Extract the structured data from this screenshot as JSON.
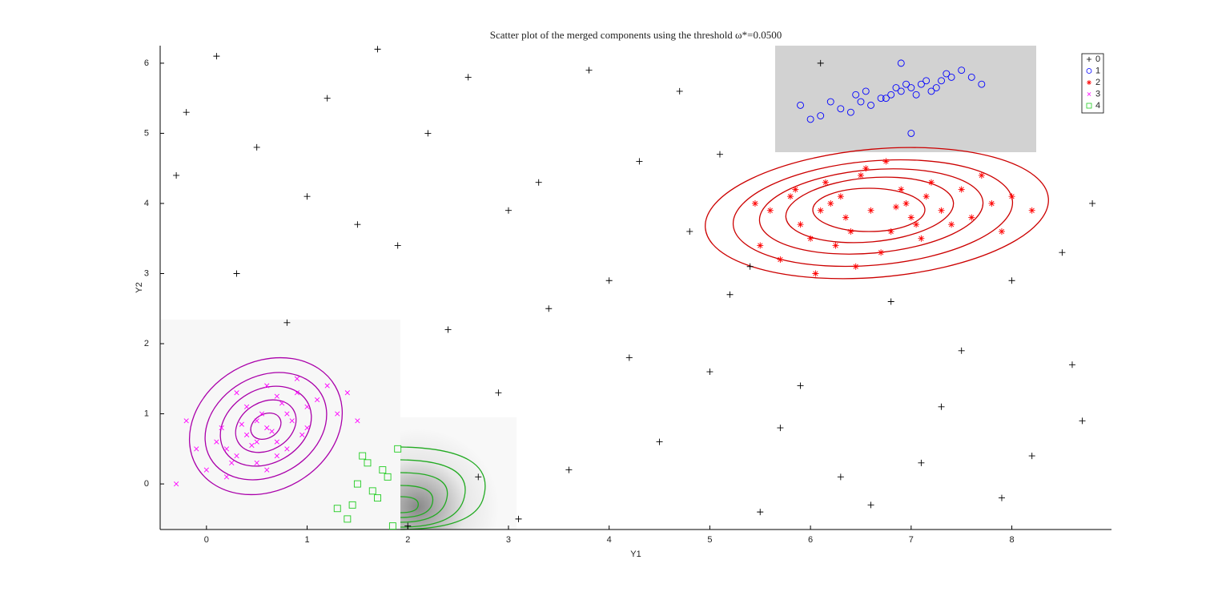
{
  "chart_data": {
    "type": "scatter",
    "title": "Scatter plot of the merged components using the threshold ω*=0.0500",
    "x_label": "Y1",
    "y_label": "Y2",
    "xlim": [
      -0.46,
      8.99
    ],
    "ylim": [
      -0.65,
      6.25
    ],
    "xticks": [
      0,
      1,
      2,
      3,
      4,
      5,
      6,
      7,
      8
    ],
    "yticks": [
      0,
      1,
      2,
      3,
      4,
      5,
      6
    ],
    "legend": "upper right",
    "series": [
      {
        "name": "0",
        "color": "#000000",
        "marker": "plus",
        "x": [
          0.1,
          0.5,
          1.2,
          1.9,
          2.6,
          3.3,
          4.0,
          4.7,
          5.4,
          6.1,
          6.8,
          7.5,
          8.2,
          8.8,
          -0.3,
          0.8,
          1.5,
          2.2,
          2.9,
          3.6,
          4.3,
          5.0,
          5.7,
          8.5,
          -0.2,
          0.3,
          1.0,
          1.7,
          2.4,
          3.1,
          3.8,
          4.5,
          5.2,
          5.9,
          6.6,
          7.3,
          8.0,
          8.7,
          2.0,
          3.0,
          4.2,
          5.5,
          6.3,
          7.1,
          7.9,
          8.6,
          4.8,
          3.4,
          2.7,
          5.1
        ],
        "values": [
          6.1,
          4.8,
          5.5,
          3.4,
          5.8,
          4.3,
          2.9,
          5.6,
          3.1,
          6.0,
          2.6,
          1.9,
          0.4,
          4.0,
          4.4,
          2.3,
          3.7,
          5.0,
          1.3,
          0.2,
          4.6,
          1.6,
          0.8,
          3.3,
          5.3,
          3.0,
          4.1,
          6.2,
          2.2,
          -0.5,
          5.9,
          0.6,
          2.7,
          1.4,
          -0.3,
          1.1,
          2.9,
          0.9,
          -0.6,
          3.9,
          1.8,
          -0.4,
          0.1,
          0.3,
          -0.2,
          1.7,
          3.6,
          2.5,
          0.1,
          4.7
        ]
      },
      {
        "name": "1",
        "color": "#0000ff",
        "marker": "circle",
        "x": [
          6.9,
          7.1,
          6.7,
          7.3,
          6.5,
          7.0,
          6.8,
          7.2,
          6.6,
          7.4,
          6.3,
          7.6,
          6.1,
          6.95,
          7.05,
          6.85,
          7.15,
          6.75,
          7.25,
          6.45,
          7.5,
          6.2,
          6.0,
          7.7,
          5.9,
          6.4,
          7.35,
          6.55,
          7.0,
          6.9
        ],
        "values": [
          5.6,
          5.7,
          5.5,
          5.75,
          5.45,
          5.65,
          5.55,
          5.6,
          5.4,
          5.8,
          5.35,
          5.8,
          5.25,
          5.7,
          5.55,
          5.65,
          5.75,
          5.5,
          5.65,
          5.55,
          5.9,
          5.45,
          5.2,
          5.7,
          5.4,
          5.3,
          5.85,
          5.6,
          5.0,
          6.0
        ]
      },
      {
        "name": "2",
        "color": "#ff0000",
        "marker": "star",
        "x": [
          6.6,
          6.2,
          7.0,
          5.8,
          7.4,
          6.4,
          6.9,
          6.0,
          7.2,
          5.6,
          7.8,
          6.5,
          6.7,
          6.3,
          7.1,
          5.9,
          7.5,
          6.1,
          6.8,
          5.5,
          8.0,
          6.55,
          7.3,
          5.7,
          7.6,
          6.35,
          6.95,
          6.15,
          7.05,
          5.45,
          7.9,
          6.45,
          6.75,
          6.25,
          7.15,
          5.85,
          7.7,
          6.05,
          6.85,
          8.2
        ],
        "values": [
          3.9,
          4.0,
          3.8,
          4.1,
          3.7,
          3.6,
          4.2,
          3.5,
          4.3,
          3.9,
          4.0,
          4.4,
          3.3,
          4.1,
          3.5,
          3.7,
          4.2,
          3.9,
          3.6,
          3.4,
          4.1,
          4.5,
          3.9,
          3.2,
          3.8,
          3.8,
          4.0,
          4.3,
          3.7,
          4.0,
          3.6,
          3.1,
          4.6,
          3.4,
          4.1,
          4.2,
          4.4,
          3.0,
          3.95,
          3.9
        ]
      },
      {
        "name": "3",
        "color": "#ff00ff",
        "marker": "cross",
        "x": [
          0.6,
          0.4,
          0.8,
          0.2,
          1.0,
          0.5,
          0.7,
          0.3,
          0.9,
          0.1,
          1.1,
          0.55,
          0.65,
          0.45,
          0.75,
          0.35,
          0.85,
          0.25,
          0.95,
          0.15,
          1.2,
          0.0,
          1.3,
          -0.1,
          0.6,
          0.5,
          0.7,
          0.4,
          0.8,
          -0.3,
          1.4,
          0.3,
          0.9,
          0.2,
          1.0,
          0.6,
          0.5,
          -0.2,
          1.5,
          0.7
        ],
        "values": [
          0.8,
          0.7,
          1.0,
          0.5,
          1.1,
          0.9,
          0.6,
          0.4,
          1.3,
          0.6,
          1.2,
          1.0,
          0.75,
          0.55,
          1.15,
          0.85,
          0.9,
          0.3,
          0.7,
          0.8,
          1.4,
          0.2,
          1.0,
          0.5,
          1.4,
          0.3,
          1.25,
          1.1,
          0.5,
          0.0,
          1.3,
          1.3,
          1.5,
          0.1,
          0.8,
          0.2,
          0.6,
          0.9,
          0.9,
          0.4
        ]
      },
      {
        "name": "4",
        "color": "#22cc22",
        "marker": "square",
        "x": [
          1.4,
          1.5,
          1.6,
          1.7,
          1.8,
          1.9,
          1.45,
          1.55,
          1.65,
          1.75,
          1.85,
          1.3
        ],
        "values": [
          -0.5,
          0.0,
          0.3,
          -0.2,
          0.1,
          0.5,
          -0.3,
          0.4,
          -0.1,
          0.2,
          -0.6,
          -0.35
        ]
      }
    ]
  }
}
